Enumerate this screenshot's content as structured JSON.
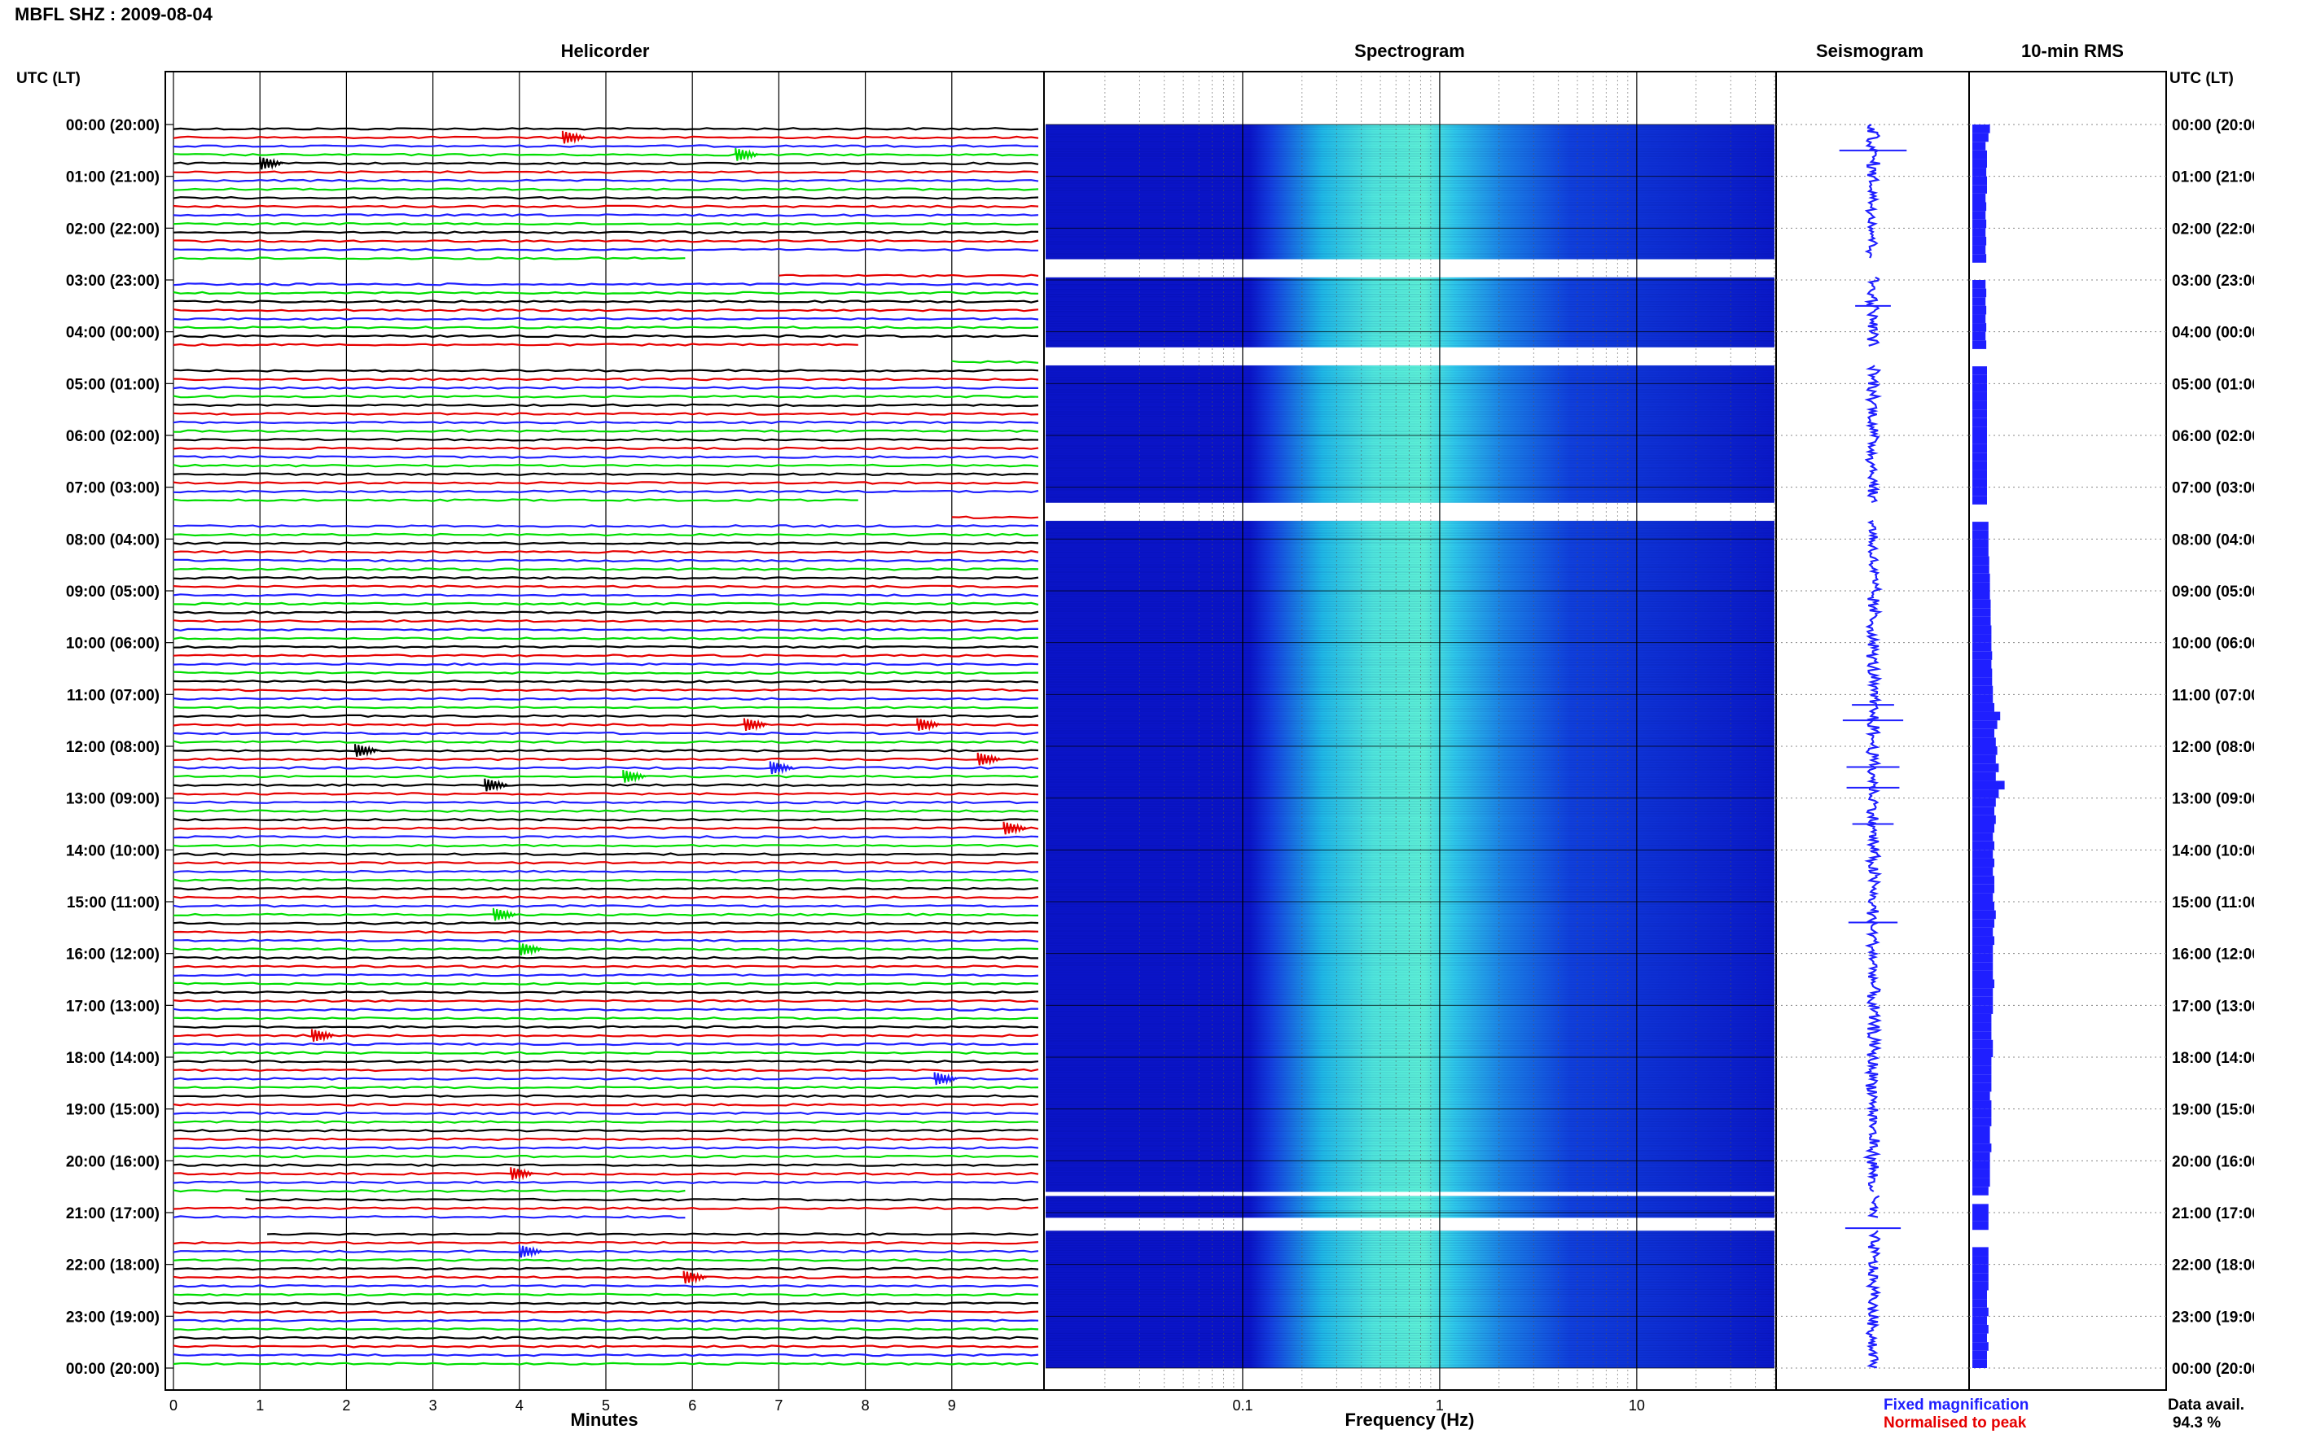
{
  "header": {
    "title": "MBFL SHZ : 2009-08-04"
  },
  "panels": {
    "helicorder": "Helicorder",
    "spectrogram": "Spectrogram",
    "seismogram": "Seismogram",
    "rms": "10-min RMS"
  },
  "axes": {
    "time_label_left": "UTC (LT)",
    "time_label_right": "UTC (LT)",
    "x_helicorder": "Minutes",
    "x_spectrogram": "Frequency (Hz)"
  },
  "legend": {
    "fixed": "Fixed magnification",
    "normalised": "Normalised to peak",
    "fixed_color": "#1f1fff",
    "normalised_color": "#e60000"
  },
  "availability": {
    "label": "Data avail.",
    "value": "94.3 %"
  },
  "colors": {
    "trace_cycle": [
      "#000000",
      "#e60000",
      "#1f1fff",
      "#00dd00"
    ],
    "spectrogram_low": "#0a14c8",
    "spectrogram_mid": "#1fb8e6",
    "spectrogram_high": "#5cf0d6",
    "seismogram": "#1f1fff",
    "rms": "#1f1fff"
  },
  "chart_data": [
    {
      "type": "line",
      "title": "Helicorder",
      "xlabel": "Minutes",
      "ylabel": "UTC (LT)",
      "xlim": [
        0,
        10
      ],
      "x_ticks": [
        0,
        1,
        2,
        3,
        4,
        5,
        6,
        7,
        8,
        9
      ],
      "traces_per_hour": 6,
      "hour_labels": [
        "00:00 (20:00)",
        "01:00 (21:00)",
        "02:00 (22:00)",
        "03:00 (23:00)",
        "04:00 (00:00)",
        "05:00 (01:00)",
        "06:00 (02:00)",
        "07:00 (03:00)",
        "08:00 (04:00)",
        "09:00 (05:00)",
        "10:00 (06:00)",
        "11:00 (07:00)",
        "12:00 (08:00)",
        "13:00 (09:00)",
        "14:00 (10:00)",
        "15:00 (11:00)",
        "16:00 (12:00)",
        "17:00 (13:00)",
        "18:00 (14:00)",
        "19:00 (15:00)",
        "20:00 (16:00)",
        "21:00 (17:00)",
        "22:00 (18:00)",
        "23:00 (19:00)",
        "00:00 (20:00)"
      ],
      "data_gaps_hours": [
        [
          2.6,
          2.95
        ],
        [
          4.3,
          4.65
        ],
        [
          7.3,
          7.65
        ],
        [
          20.6,
          20.68
        ],
        [
          21.1,
          21.35
        ]
      ],
      "events": [
        {
          "trace": 1,
          "minute": 4.5
        },
        {
          "trace": 3,
          "minute": 6.5
        },
        {
          "trace": 4,
          "minute": 1.0
        },
        {
          "trace": 69,
          "minute": 6.6
        },
        {
          "trace": 69,
          "minute": 8.6
        },
        {
          "trace": 72,
          "minute": 2.1
        },
        {
          "trace": 73,
          "minute": 9.3
        },
        {
          "trace": 74,
          "minute": 6.9
        },
        {
          "trace": 75,
          "minute": 5.2
        },
        {
          "trace": 76,
          "minute": 3.6
        },
        {
          "trace": 81,
          "minute": 9.6
        },
        {
          "trace": 91,
          "minute": 3.7
        },
        {
          "trace": 95,
          "minute": 4.0
        },
        {
          "trace": 105,
          "minute": 1.6
        },
        {
          "trace": 110,
          "minute": 8.8
        },
        {
          "trace": 121,
          "minute": 3.9
        },
        {
          "trace": 130,
          "minute": 4.0
        },
        {
          "trace": 133,
          "minute": 5.9
        }
      ]
    },
    {
      "type": "heatmap",
      "title": "Spectrogram",
      "xlabel": "Frequency (Hz)",
      "x_scale": "log",
      "xlim": [
        0.01,
        50
      ],
      "x_ticks": [
        0.1,
        1,
        10
      ],
      "peak_band_hz": [
        0.2,
        5
      ]
    },
    {
      "type": "line",
      "title": "Seismogram",
      "note": "Fixed magnification trace at full-day scale",
      "spikes_hours": [
        0.5,
        3.5,
        11.2,
        11.5,
        12.4,
        12.8,
        13.5,
        15.4,
        21.3
      ]
    },
    {
      "type": "bar",
      "title": "10-min RMS",
      "orientation": "horizontal",
      "values": [
        1.2,
        1.1,
        0.9,
        1.0,
        1.0,
        0.95,
        1.0,
        1.0,
        0.9,
        0.95,
        0.9,
        0.95,
        0.9,
        0.95,
        0.9,
        0.95,
        0.0,
        0.0,
        0.9,
        0.95,
        0.9,
        0.95,
        0.9,
        0.95,
        0.9,
        0.95,
        0.0,
        0.0,
        1.0,
        1.0,
        1.0,
        1.0,
        1.0,
        1.0,
        1.0,
        1.0,
        1.0,
        1.0,
        1.0,
        1.0,
        1.0,
        1.0,
        1.0,
        1.0,
        0.0,
        0.0,
        1.1,
        1.1,
        1.1,
        1.1,
        1.15,
        1.15,
        1.2,
        1.2,
        1.2,
        1.25,
        1.25,
        1.25,
        1.3,
        1.3,
        1.3,
        1.35,
        1.3,
        1.35,
        1.35,
        1.4,
        1.4,
        1.5,
        1.9,
        1.7,
        1.5,
        1.6,
        1.7,
        1.6,
        1.8,
        1.6,
        2.2,
        1.8,
        1.6,
        1.5,
        1.6,
        1.5,
        1.4,
        1.5,
        1.4,
        1.5,
        1.4,
        1.5,
        1.5,
        1.4,
        1.5,
        1.6,
        1.5,
        1.4,
        1.5,
        1.4,
        1.4,
        1.4,
        1.4,
        1.5,
        1.4,
        1.4,
        1.4,
        1.3,
        1.3,
        1.3,
        1.4,
        1.4,
        1.3,
        1.3,
        1.3,
        1.3,
        1.2,
        1.3,
        1.3,
        1.3,
        1.2,
        1.2,
        1.3,
        1.2,
        1.2,
        1.2,
        1.2,
        1.1,
        0.0,
        1.1,
        1.1,
        1.1,
        0.0,
        0.0,
        1.1,
        1.1,
        1.1,
        1.1,
        1.1,
        1.0,
        1.0,
        1.1,
        1.0,
        1.1,
        1.0,
        1.1,
        1.0,
        1.0
      ]
    }
  ]
}
